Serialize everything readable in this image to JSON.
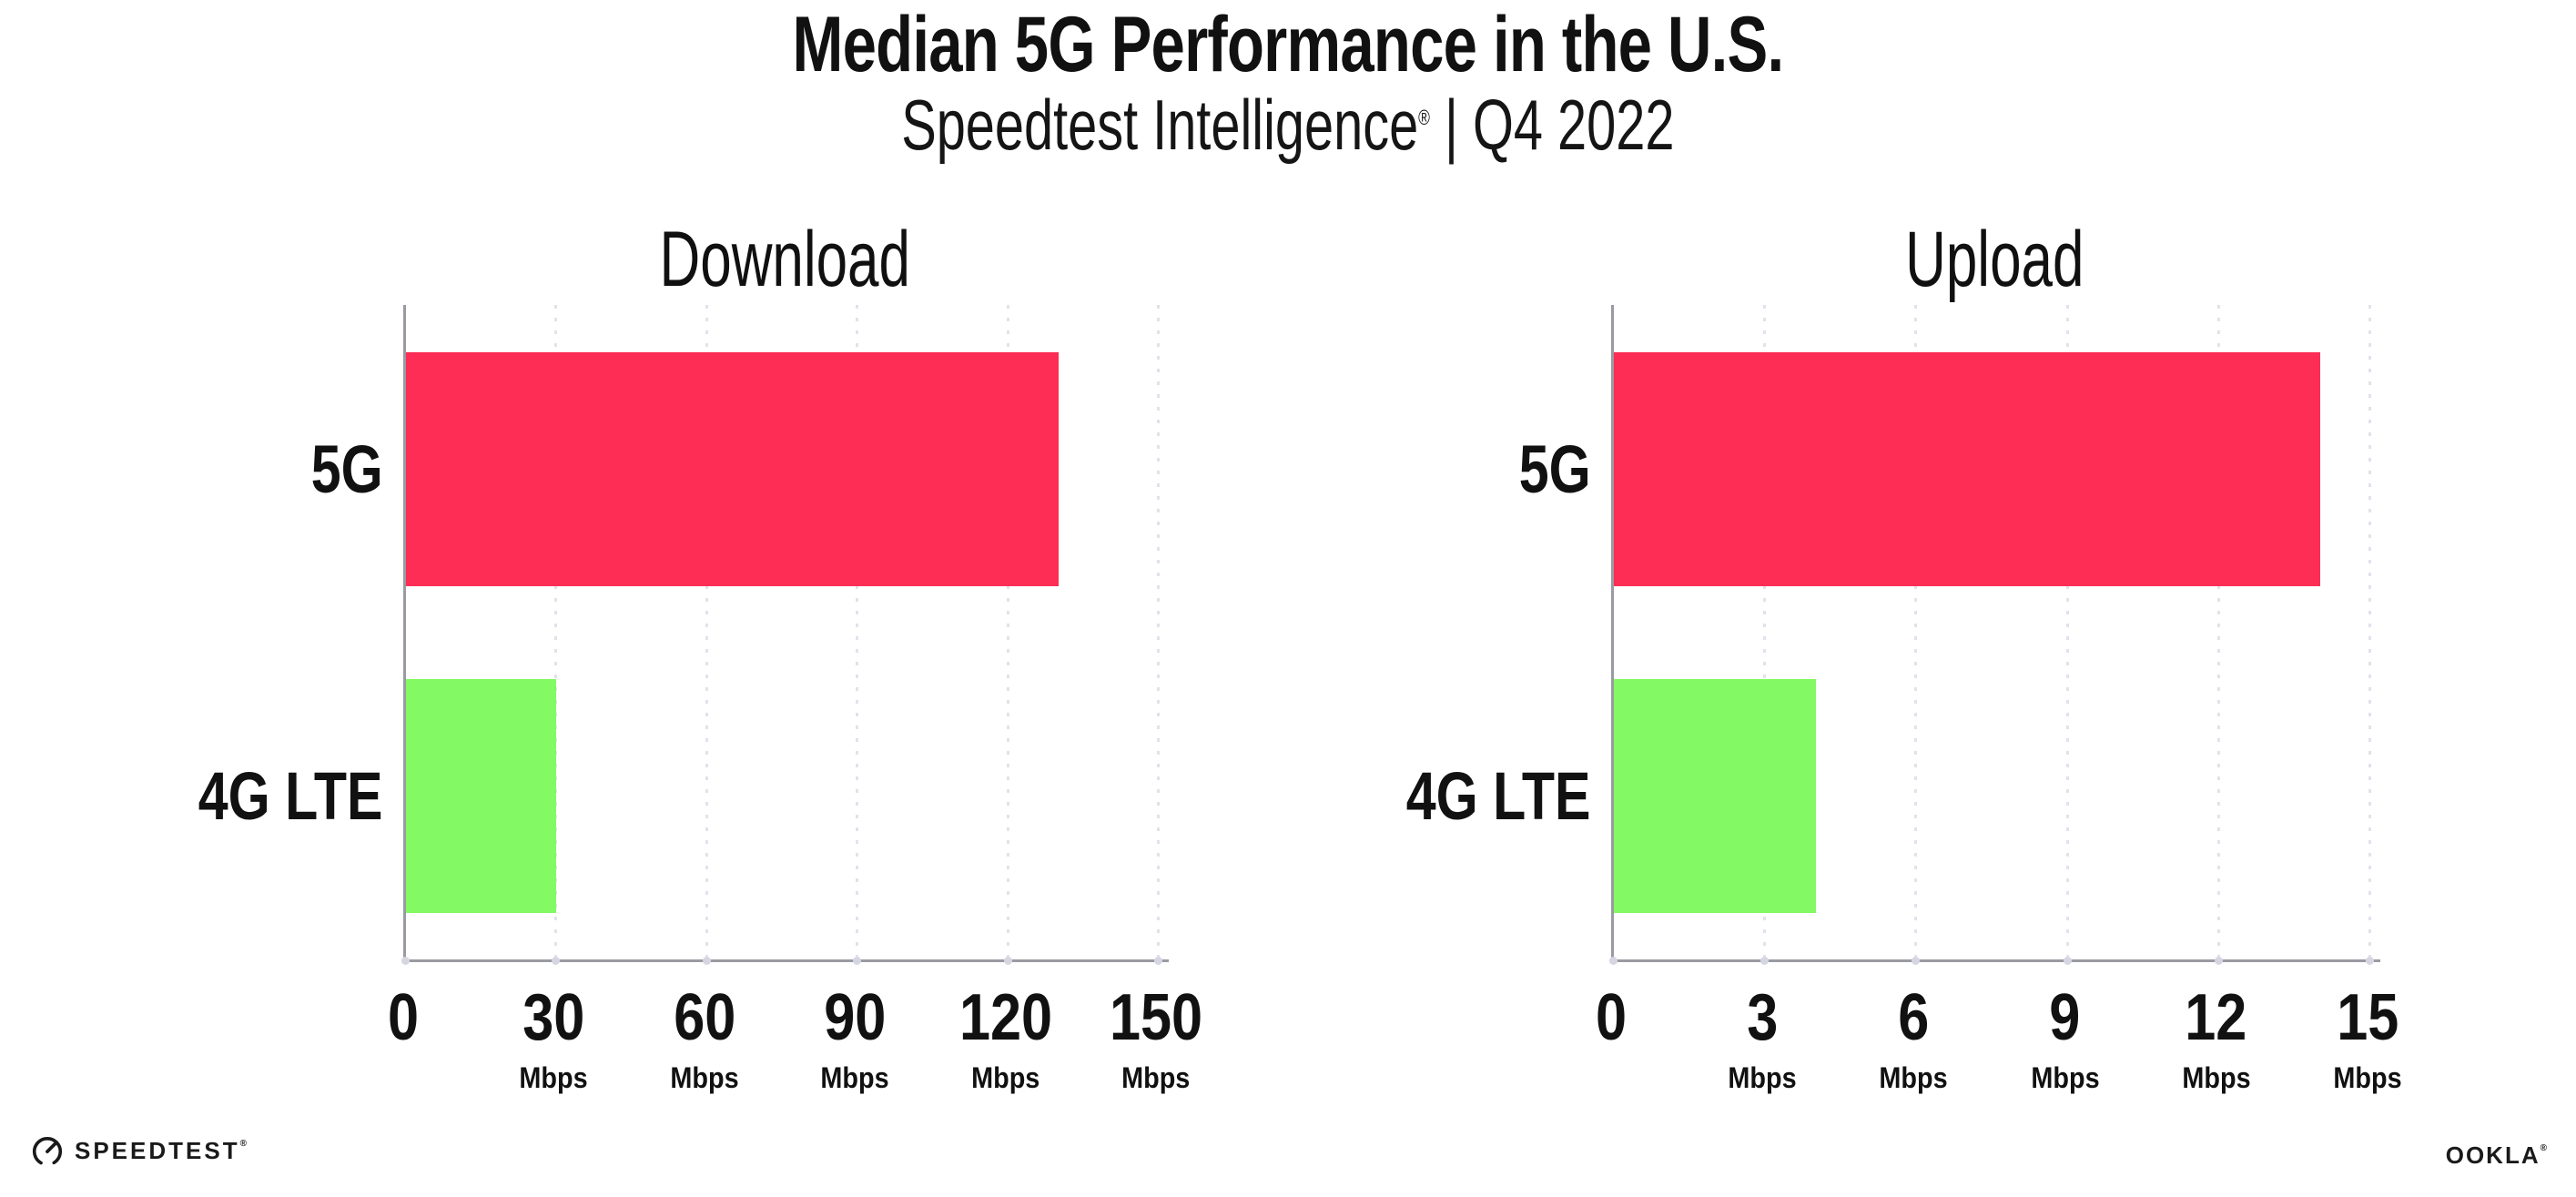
{
  "header": {
    "title": "Median 5G Performance in the U.S.",
    "subtitle_brand": "Speedtest Intelligence",
    "subtitle_reg": "®",
    "subtitle_rest": " | Q4 2022"
  },
  "chart_data": [
    {
      "type": "bar",
      "orientation": "horizontal",
      "title": "Download",
      "unit": "Mbps",
      "categories": [
        "5G",
        "4G LTE"
      ],
      "values": [
        130,
        30
      ],
      "ticks": [
        0,
        30,
        60,
        90,
        120,
        150
      ],
      "xlim": [
        0,
        152
      ],
      "bar_colors": [
        "#FD2D55",
        "#83F963"
      ],
      "grid": "dotted-vertical",
      "legend": "none"
    },
    {
      "type": "bar",
      "orientation": "horizontal",
      "title": "Upload",
      "unit": "Mbps",
      "categories": [
        "5G",
        "4G LTE"
      ],
      "values": [
        14,
        4
      ],
      "ticks": [
        0,
        3,
        6,
        9,
        12,
        15
      ],
      "xlim": [
        0,
        15.2
      ],
      "bar_colors": [
        "#FD2D55",
        "#83F963"
      ],
      "grid": "dotted-vertical",
      "legend": "none"
    }
  ],
  "footer": {
    "speedtest_label": "SPEEDTEST",
    "speedtest_reg": "®",
    "ookla_label": "OOKLA",
    "ookla_reg": "®"
  },
  "colors": {
    "bar_5g": "#FD2D55",
    "bar_4g_lte": "#83F963",
    "axis": "#9A9AA2",
    "grid_dot": "#E2E2EC",
    "text": "#111111",
    "background": "#FFFFFF"
  }
}
